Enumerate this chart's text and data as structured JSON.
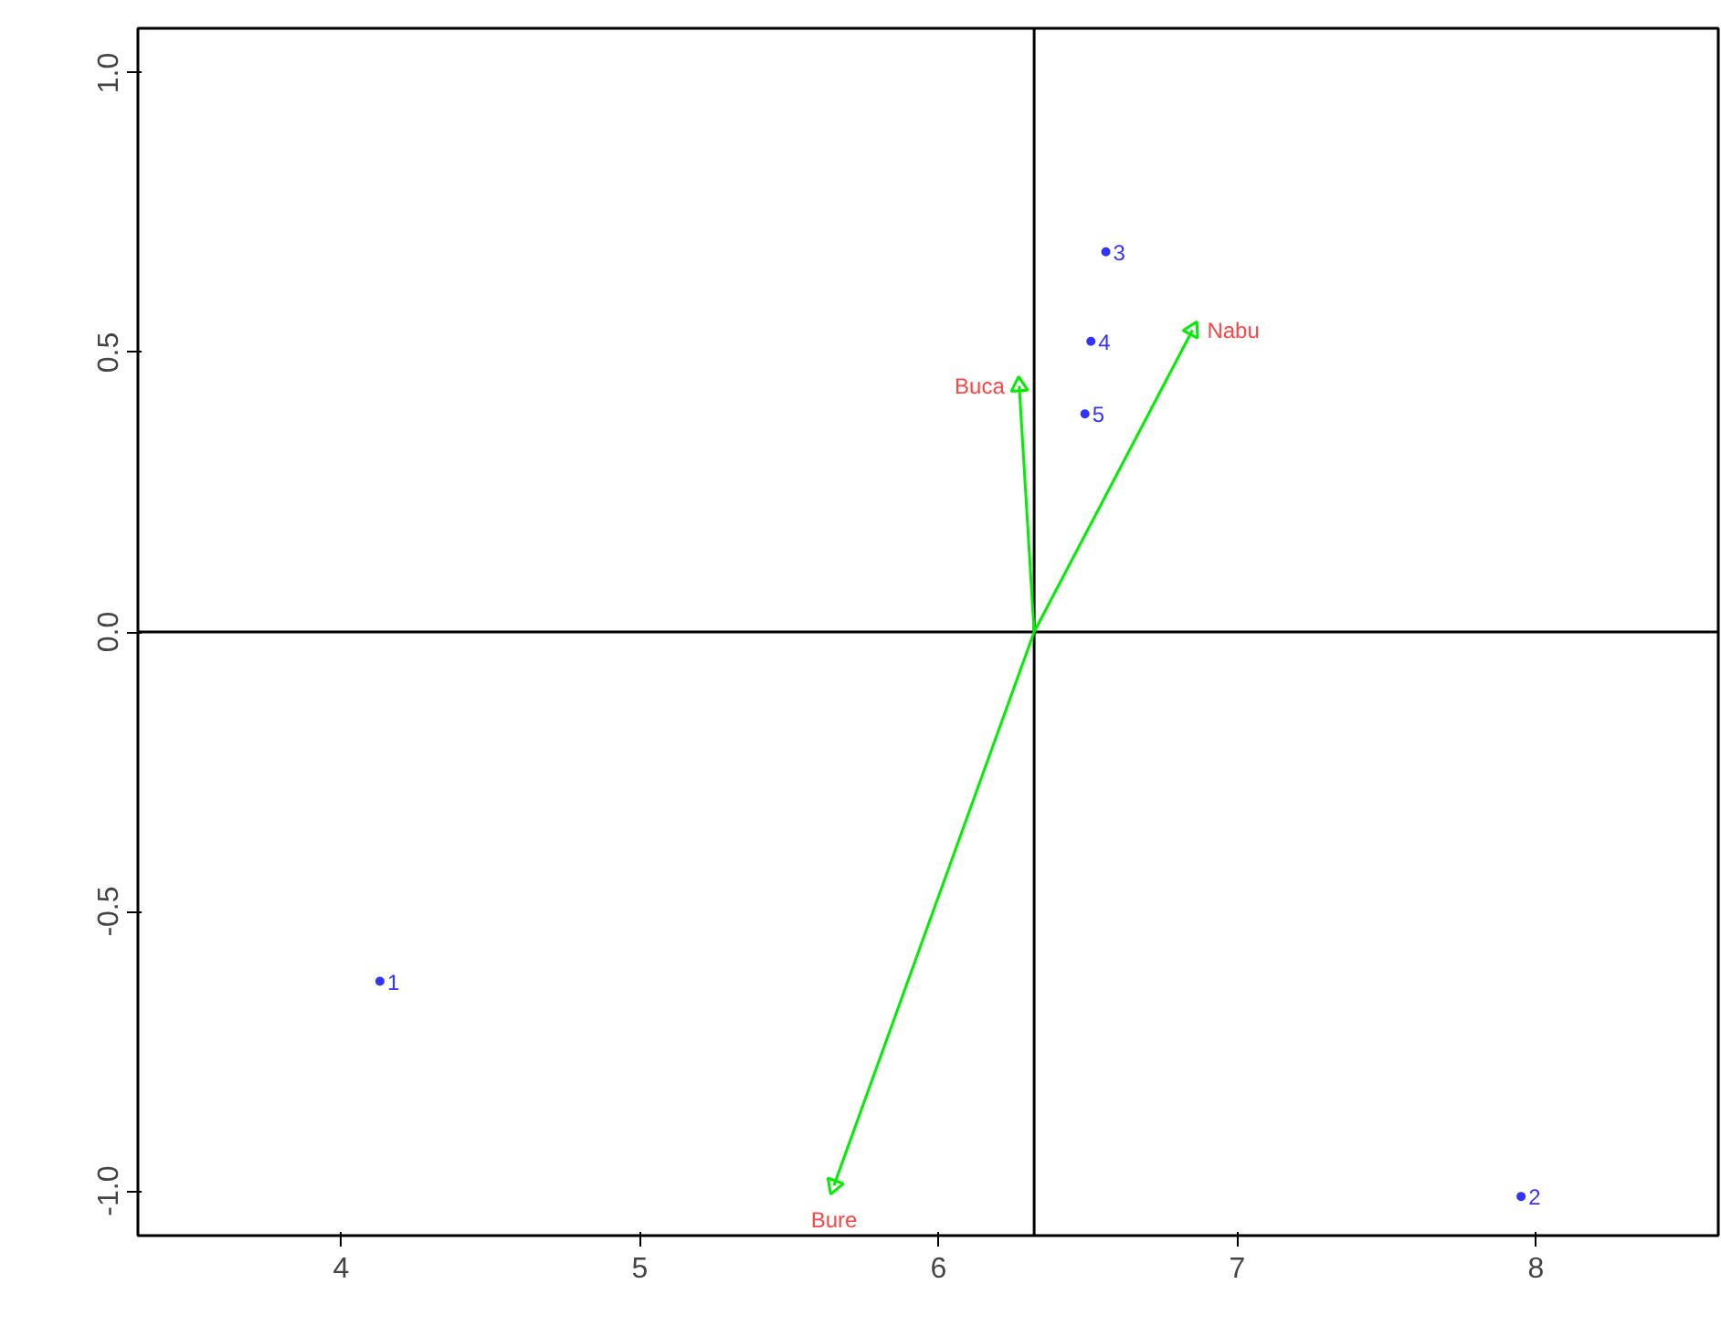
{
  "chart_data": {
    "type": "scatter",
    "xlim": [
      3.32,
      8.61
    ],
    "ylim": [
      -1.08,
      1.08
    ],
    "xticks": [
      4,
      5,
      6,
      7,
      8
    ],
    "yticks": [
      {
        "value": -1.0,
        "label": "-1.0"
      },
      -0.5,
      {
        "value": 0.0,
        "label": "0.0"
      },
      0.5,
      {
        "value": 1.0,
        "label": "1.0"
      }
    ],
    "grid": false,
    "marker": "circle",
    "series": [
      {
        "name": "1",
        "color": "#3333ff",
        "x": [
          4.13
        ],
        "values": [
          -0.625
        ]
      },
      {
        "name": "2",
        "color": "#3333ff",
        "x": [
          7.95
        ],
        "values": [
          -1.01
        ]
      },
      {
        "name": "3",
        "color": "#3333ff",
        "x": [
          6.56
        ],
        "values": [
          0.68
        ]
      },
      {
        "name": "4",
        "color": "#3333ff",
        "x": [
          6.51
        ],
        "values": [
          0.52
        ]
      },
      {
        "name": "5",
        "color": "#3333ff",
        "x": [
          6.49
        ],
        "values": [
          0.39
        ]
      },
      {
        "name": "Nabu",
        "color": "#00ee00",
        "marker": "triangle",
        "x": [
          6.85
        ],
        "values": [
          0.54
        ]
      },
      {
        "name": "Buca",
        "color": "#00ee00",
        "marker": "triangle",
        "x": [
          6.27
        ],
        "values": [
          0.44
        ]
      },
      {
        "name": "Bure",
        "color": "#00ee00",
        "marker": "triangle",
        "x": [
          5.65
        ],
        "values": [
          -0.99
        ]
      }
    ],
    "ref_lines": [
      {
        "axis": "x",
        "value": 6.32,
        "color": "#000000"
      },
      {
        "axis": "y",
        "value": 0,
        "color": "#000000"
      }
    ]
  }
}
